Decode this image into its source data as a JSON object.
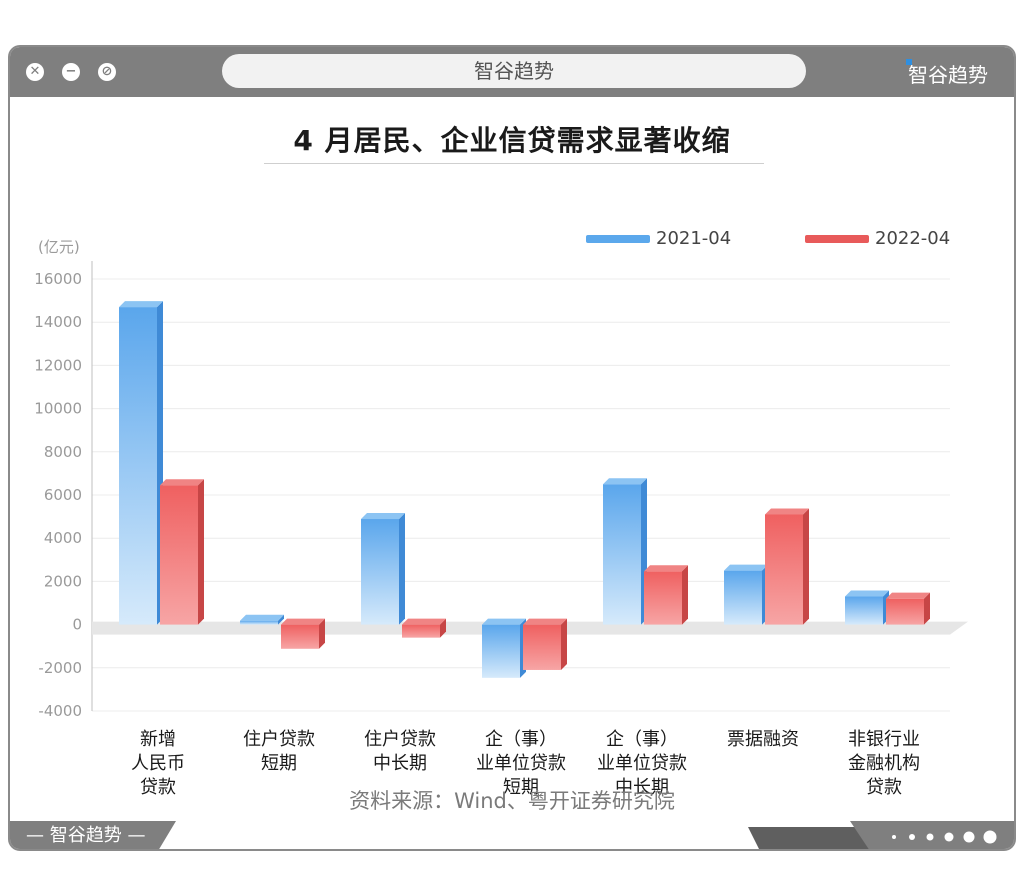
{
  "window": {
    "address_title": "智谷趋势",
    "brand": "智谷趋势",
    "footer_brand": "— 智谷趋势 —",
    "controls": [
      "close",
      "minimize",
      "block"
    ]
  },
  "chart_data": {
    "type": "bar",
    "title": "4 月居民、企业信贷需求显著收缩",
    "unit_label": "(亿元)",
    "categories": [
      [
        "新增",
        "人民币",
        "贷款"
      ],
      [
        "住户贷款",
        "短期"
      ],
      [
        "住户贷款",
        "中长期"
      ],
      [
        "企（事）",
        "业单位贷款",
        "短期"
      ],
      [
        "企（事）",
        "业单位贷款",
        "中长期"
      ],
      [
        "票据融资"
      ],
      [
        "非银行业",
        "金融机构",
        "贷款"
      ]
    ],
    "series": [
      {
        "name": "2021-04",
        "color": "#5ba8ec",
        "values": [
          14700,
          181,
          4888,
          -2464,
          6500,
          2500,
          1300
        ]
      },
      {
        "name": "2022-04",
        "color": "#e85a5a",
        "values": [
          6454,
          -1120,
          -605,
          -2100,
          2469,
          5100,
          1200
        ]
      }
    ],
    "ylim": [
      -4000,
      16000
    ],
    "yticks": [
      "16000",
      "14000",
      "12000",
      "10000",
      "8000",
      "6000",
      "4000",
      "2000",
      "0",
      "-2000",
      "-4000"
    ],
    "legend_position": "top-right",
    "grid": true,
    "source": "资料来源：Wind、粤开证券研究院"
  }
}
